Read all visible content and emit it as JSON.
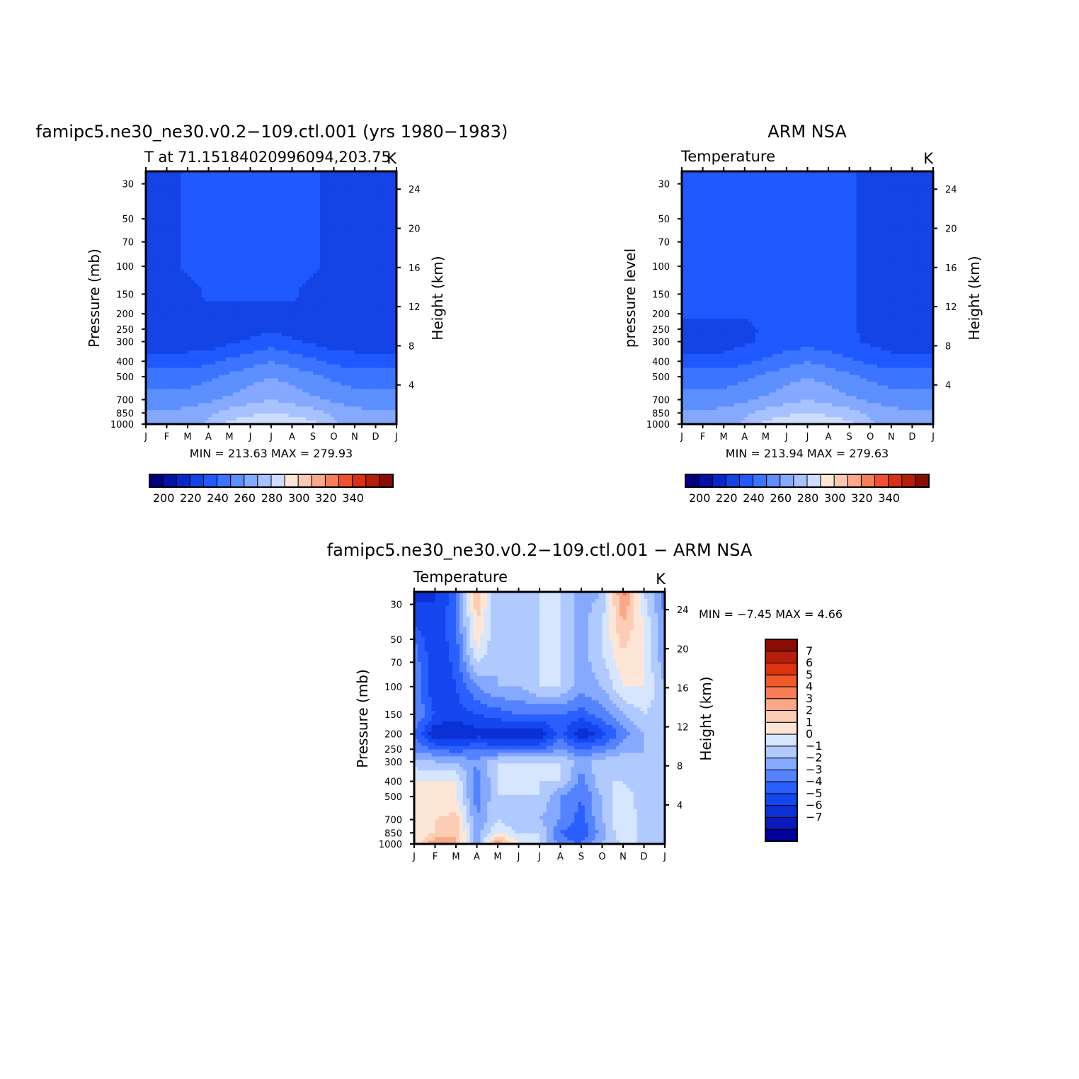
{
  "chart_data": [
    {
      "type": "heatmap",
      "panel": "model",
      "title": "famipc5.ne30_ne30.v0.2−109.ctl.001 (yrs 1980−1983)",
      "left_label": "T at 71.15184020996094,203.75",
      "right_label": "K",
      "xlabel": "",
      "ylabel": "Pressure (mb)",
      "y2label": "Height (km)",
      "x_ticks": [
        "J",
        "F",
        "M",
        "A",
        "M",
        "J",
        "J",
        "A",
        "S",
        "O",
        "N",
        "D",
        "J"
      ],
      "y_ticks": [
        30,
        50,
        70,
        100,
        150,
        200,
        250,
        300,
        400,
        500,
        700,
        850,
        1000
      ],
      "y2_ticks": [
        24,
        20,
        16,
        12,
        8,
        4
      ],
      "y_scale": "log",
      "ylim": [
        1000,
        25
      ],
      "minmax_label": "MIN = 213.63 MAX = 279.93",
      "min": 213.63,
      "max": 279.93,
      "colorbar_labels": [
        "200",
        "220",
        "240",
        "260",
        "280",
        "300",
        "320",
        "340"
      ],
      "levels": [
        {
          "p": 25,
          "values": [
            214,
            214,
            223,
            223,
            223,
            223,
            223,
            223,
            223,
            214,
            214,
            214,
            214
          ]
        },
        {
          "p": 100,
          "values": [
            214,
            214,
            223,
            223,
            223,
            223,
            223,
            223,
            223,
            214,
            214,
            214,
            214
          ]
        },
        {
          "p": 150,
          "values": [
            214,
            214,
            214,
            223,
            223,
            223,
            223,
            223,
            214,
            214,
            214,
            214,
            214
          ]
        },
        {
          "p": 200,
          "values": [
            214,
            214,
            214,
            214,
            214,
            214,
            214,
            214,
            214,
            214,
            214,
            214,
            214
          ]
        },
        {
          "p": 250,
          "values": [
            214,
            214,
            214,
            214,
            214,
            214,
            219,
            214,
            214,
            214,
            214,
            214,
            214
          ]
        },
        {
          "p": 300,
          "values": [
            214,
            214,
            214,
            214,
            218,
            222,
            226,
            222,
            218,
            214,
            214,
            214,
            214
          ]
        },
        {
          "p": 400,
          "values": [
            225,
            225,
            225,
            228,
            232,
            236,
            240,
            236,
            232,
            228,
            225,
            225,
            225
          ]
        },
        {
          "p": 500,
          "values": [
            235,
            235,
            235,
            238,
            242,
            246,
            250,
            246,
            242,
            238,
            235,
            235,
            235
          ]
        },
        {
          "p": 700,
          "values": [
            245,
            245,
            245,
            248,
            252,
            256,
            260,
            256,
            252,
            248,
            245,
            245,
            245
          ]
        },
        {
          "p": 850,
          "values": [
            252,
            252,
            253,
            258,
            265,
            268,
            270,
            268,
            265,
            258,
            253,
            252,
            252
          ]
        },
        {
          "p": 1000,
          "values": [
            255,
            255,
            256,
            262,
            272,
            276,
            279,
            276,
            272,
            262,
            256,
            255,
            255
          ]
        }
      ]
    },
    {
      "type": "heatmap",
      "panel": "obs",
      "title": "ARM NSA",
      "left_label": "Temperature",
      "right_label": "K",
      "xlabel": "",
      "ylabel": "pressure level",
      "y2label": "Height (km)",
      "x_ticks": [
        "J",
        "F",
        "M",
        "A",
        "M",
        "J",
        "J",
        "A",
        "S",
        "O",
        "N",
        "D",
        "J"
      ],
      "y_ticks": [
        30,
        50,
        70,
        100,
        150,
        200,
        250,
        300,
        400,
        500,
        700,
        850,
        1000
      ],
      "y2_ticks": [
        24,
        20,
        16,
        12,
        8,
        4
      ],
      "y_scale": "log",
      "ylim": [
        1000,
        25
      ],
      "minmax_label": "MIN = 213.94 MAX = 279.63",
      "min": 213.94,
      "max": 279.63,
      "colorbar_labels": [
        "200",
        "220",
        "240",
        "260",
        "280",
        "300",
        "320",
        "340"
      ],
      "levels": [
        {
          "p": 25,
          "values": [
            224,
            224,
            224,
            224,
            224,
            224,
            224,
            224,
            224,
            214,
            214,
            214,
            214
          ]
        },
        {
          "p": 150,
          "values": [
            224,
            224,
            224,
            224,
            224,
            224,
            224,
            224,
            224,
            214,
            214,
            214,
            214
          ]
        },
        {
          "p": 200,
          "values": [
            224,
            224,
            224,
            224,
            224,
            224,
            224,
            224,
            224,
            214,
            214,
            214,
            214
          ]
        },
        {
          "p": 250,
          "values": [
            214,
            214,
            214,
            214,
            224,
            224,
            224,
            224,
            224,
            214,
            214,
            214,
            214
          ]
        },
        {
          "p": 300,
          "values": [
            214,
            214,
            214,
            218,
            222,
            224,
            226,
            224,
            222,
            218,
            214,
            214,
            214
          ]
        },
        {
          "p": 400,
          "values": [
            225,
            225,
            225,
            228,
            232,
            236,
            240,
            236,
            232,
            228,
            225,
            225,
            225
          ]
        },
        {
          "p": 500,
          "values": [
            235,
            235,
            235,
            238,
            242,
            246,
            250,
            246,
            242,
            238,
            235,
            235,
            235
          ]
        },
        {
          "p": 700,
          "values": [
            245,
            245,
            245,
            248,
            252,
            256,
            260,
            256,
            252,
            248,
            245,
            245,
            245
          ]
        },
        {
          "p": 850,
          "values": [
            252,
            252,
            253,
            258,
            265,
            268,
            270,
            268,
            265,
            258,
            253,
            252,
            252
          ]
        },
        {
          "p": 1000,
          "values": [
            255,
            255,
            256,
            262,
            272,
            276,
            279,
            276,
            272,
            262,
            256,
            255,
            255
          ]
        }
      ]
    },
    {
      "type": "heatmap",
      "panel": "diff",
      "title": "famipc5.ne30_ne30.v0.2−109.ctl.001 − ARM NSA",
      "left_label": "Temperature",
      "right_label": "K",
      "xlabel": "",
      "ylabel": "Pressure (mb)",
      "y2label": "Height (km)",
      "x_ticks": [
        "J",
        "F",
        "M",
        "A",
        "M",
        "J",
        "J",
        "A",
        "S",
        "O",
        "N",
        "D",
        "J"
      ],
      "y_ticks": [
        30,
        50,
        70,
        100,
        150,
        200,
        250,
        300,
        400,
        500,
        700,
        850,
        1000
      ],
      "y2_ticks": [
        24,
        20,
        16,
        12,
        8,
        4
      ],
      "y_scale": "log",
      "ylim": [
        1000,
        25
      ],
      "minmax_label": "MIN =  −7.45 MAX =    4.66",
      "min": -7.45,
      "max": 4.66,
      "colorbar_labels": [
        "7",
        "6",
        "5",
        "4",
        "3",
        "2",
        "1",
        "0",
        "−1",
        "−2",
        "−3",
        "−4",
        "−5",
        "−6",
        "−7"
      ],
      "levels": [
        {
          "p": 25,
          "values": [
            -6,
            -5.5,
            -4,
            2.5,
            -1.5,
            -1.5,
            -0.5,
            -0.5,
            -2,
            -1.5,
            4,
            -0.5,
            -3
          ]
        },
        {
          "p": 40,
          "values": [
            -4.5,
            -5.5,
            -3.5,
            1.5,
            -1.5,
            -1.5,
            -0.5,
            -0.5,
            -2,
            -0.5,
            2.5,
            0.5,
            -2.5
          ]
        },
        {
          "p": 60,
          "values": [
            -3,
            -5.5,
            -4,
            0.5,
            -1.5,
            -1.5,
            -0.5,
            -0.5,
            -2,
            -0.5,
            1.5,
            0.5,
            -2.5
          ]
        },
        {
          "p": 100,
          "values": [
            -2.5,
            -5.5,
            -4.5,
            -2.5,
            -1.5,
            -1.5,
            -0.5,
            -0.5,
            -2,
            -1.5,
            0.5,
            0.5,
            -1.5
          ]
        },
        {
          "p": 150,
          "values": [
            -2.5,
            -4.5,
            -5,
            -4.5,
            -4,
            -3.5,
            -3.5,
            -3.5,
            -4,
            -3,
            -1.5,
            -0.5,
            -1
          ]
        },
        {
          "p": 200,
          "values": [
            -3.5,
            -6.5,
            -6.5,
            -6,
            -6,
            -6.5,
            -6.5,
            -4,
            -6.5,
            -5,
            -3,
            -1.5,
            -1
          ]
        },
        {
          "p": 250,
          "values": [
            -3,
            -3.5,
            -4,
            -3.5,
            -4,
            -4,
            -3.5,
            -2.5,
            -3.5,
            -3,
            -2,
            -1.5,
            -1
          ]
        },
        {
          "p": 300,
          "values": [
            -1,
            -1.5,
            -1.5,
            -2.5,
            -0.5,
            -0.5,
            -0.5,
            -0.5,
            -2,
            -1,
            -0.5,
            -1.5,
            -1
          ]
        },
        {
          "p": 400,
          "values": [
            0.5,
            0.5,
            0.5,
            -3,
            -0.5,
            -0.5,
            -0.5,
            -0.5,
            -3,
            -0.5,
            -0.5,
            -1.5,
            -0.5
          ]
        },
        {
          "p": 500,
          "values": [
            0.5,
            0.5,
            0.5,
            -3,
            -0.5,
            -0.5,
            -0.5,
            -2.5,
            -3.5,
            -1.5,
            0.5,
            -1.5,
            -0.5
          ]
        },
        {
          "p": 700,
          "values": [
            0.5,
            1.5,
            2,
            -2.5,
            -0.5,
            -1.5,
            -1.5,
            -2.5,
            -4,
            -1.5,
            0.5,
            -1,
            -0.5
          ]
        },
        {
          "p": 850,
          "values": [
            0.5,
            1.5,
            2.5,
            -2,
            0.5,
            -0.5,
            -0.5,
            -3.5,
            -4.5,
            -2,
            0.5,
            -1,
            -0.5
          ]
        },
        {
          "p": 1000,
          "values": [
            0.5,
            3.5,
            2.5,
            -2,
            3.5,
            0.5,
            -0.5,
            -3,
            -3.5,
            -1.5,
            -0.5,
            -0.5,
            -0.5
          ]
        }
      ]
    }
  ],
  "colors": {
    "abs_scale": [
      "#00007f",
      "#0013a8",
      "#0726cc",
      "#1444e6",
      "#1f59ff",
      "#3b75ff",
      "#5d8fff",
      "#84a9ff",
      "#a8c2ff",
      "#cddcff",
      "#fce6d5",
      "#fbc9b1",
      "#f9a88a",
      "#f77d57",
      "#f0522e",
      "#dd2f14",
      "#b51f0a",
      "#8a0d05"
    ],
    "diff_scale": [
      "#00009a",
      "#0a19b8",
      "#0a30d6",
      "#1447f0",
      "#2a5fff",
      "#5583ff",
      "#84a9ff",
      "#b0c9ff",
      "#d6e6ff",
      "#fde6d6",
      "#fcccb4",
      "#f9a988",
      "#f87d56",
      "#f05a2a",
      "#dc3410",
      "#b51f0a",
      "#8a0d05"
    ]
  }
}
